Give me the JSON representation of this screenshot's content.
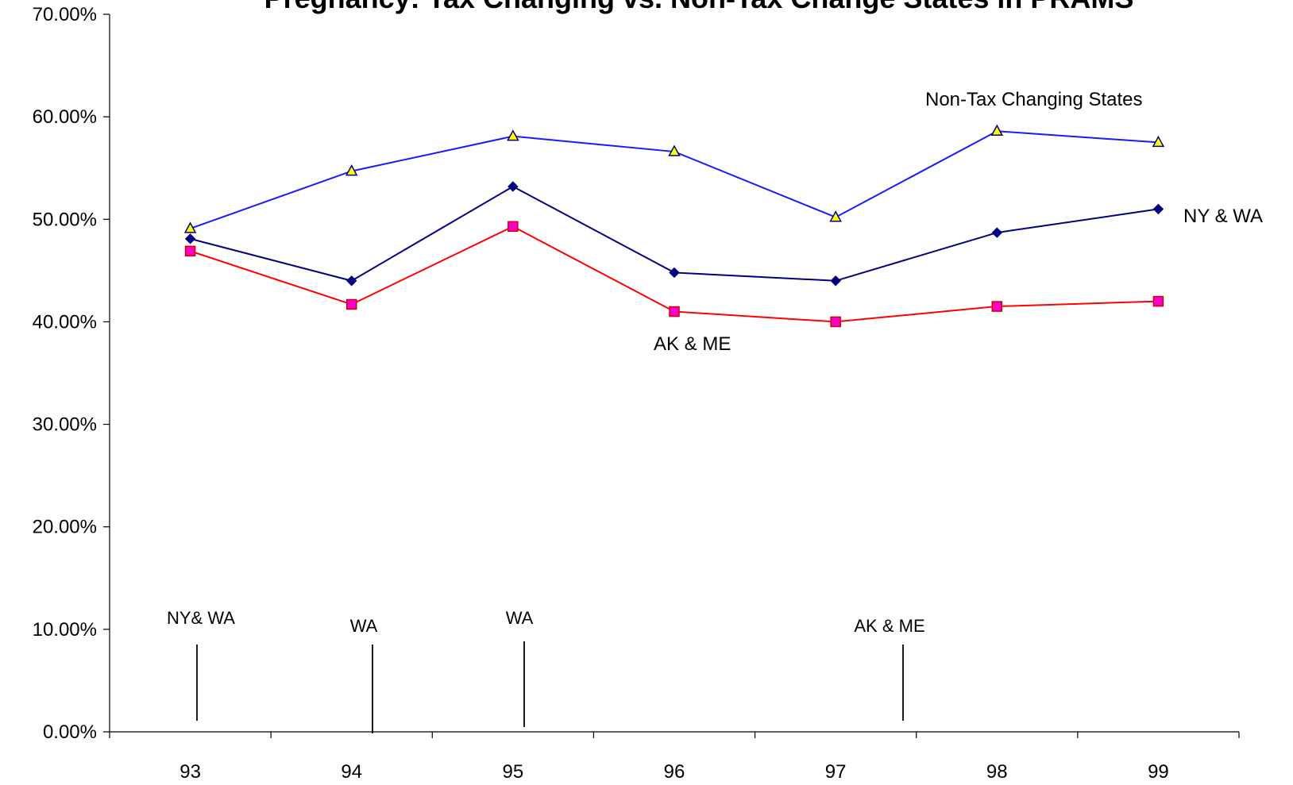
{
  "chart_data": {
    "type": "line",
    "title": "Pregnancy: Tax Changing vs. Non-Tax Change States in PRAMS",
    "xlabel": "",
    "ylabel": "",
    "categories": [
      "93",
      "94",
      "95",
      "96",
      "97",
      "98",
      "99"
    ],
    "ylim": [
      0,
      70
    ],
    "y_ticks": [
      "0.00%",
      "10.00%",
      "20.00%",
      "30.00%",
      "40.00%",
      "50.00%",
      "60.00%",
      "70.00%"
    ],
    "grid": false,
    "legend": "none",
    "series": [
      {
        "name": "Non-Tax Changing States",
        "values": [
          49.1,
          54.7,
          58.1,
          56.6,
          50.2,
          58.6,
          57.5
        ],
        "color": "#1a1aff",
        "marker": "triangle",
        "marker_fill": "#ffff00",
        "marker_stroke": "#000080"
      },
      {
        "name": "NY & WA",
        "values": [
          48.1,
          44.0,
          53.2,
          44.8,
          44.0,
          48.7,
          51.0
        ],
        "color": "#000080",
        "marker": "diamond",
        "marker_fill": "#000080",
        "marker_stroke": "#000080"
      },
      {
        "name": "AK & ME",
        "values": [
          46.9,
          41.7,
          49.3,
          41.0,
          40.0,
          41.5,
          42.0
        ],
        "color": "#ff0000",
        "marker": "square",
        "marker_fill": "#ff00cc",
        "marker_stroke": "#cc0000"
      }
    ],
    "annotations": [
      {
        "text": "NY& WA",
        "x": 0.0
      },
      {
        "text": "WA",
        "x": 1.1
      },
      {
        "text": "WA",
        "x": 2.0
      },
      {
        "text": "AK & ME",
        "x": 3.4
      }
    ]
  }
}
